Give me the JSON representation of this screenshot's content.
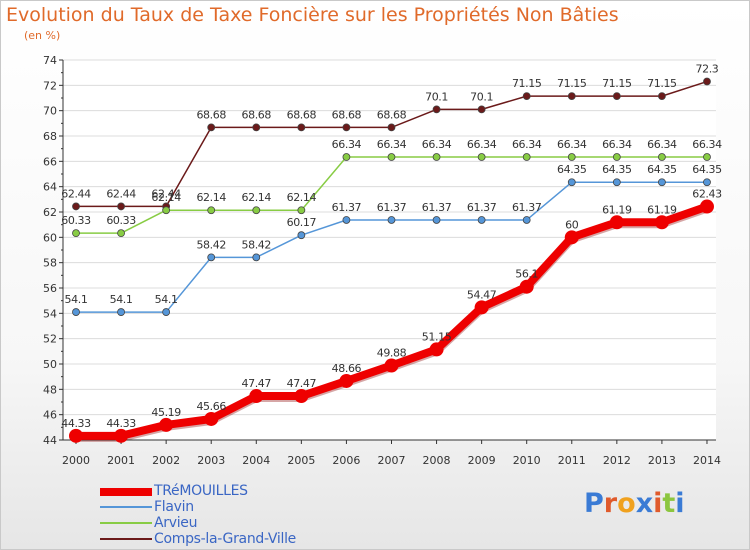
{
  "header": {
    "title": "Evolution du Taux de Taxe Foncière sur les Propriétés Non Bâties",
    "subtitle": "(en %)"
  },
  "logo": {
    "text": "Proxiti",
    "colors": [
      "#3a7bd5",
      "#e05a2b",
      "#f0a11e",
      "#3a7bd5",
      "#e05a2b",
      "#8cc63f",
      "#3a7bd5"
    ]
  },
  "chart_data": {
    "type": "line",
    "title": "Evolution du Taux de Taxe Foncière sur les Propriétés Non Bâties",
    "ylabel": "(en %)",
    "xlabel": "",
    "x": [
      "2000",
      "2001",
      "2002",
      "2003",
      "2004",
      "2005",
      "2006",
      "2007",
      "2008",
      "2009",
      "2010",
      "2011",
      "2012",
      "2013",
      "2014"
    ],
    "ylim": [
      44,
      74
    ],
    "yticks": [
      44,
      46,
      48,
      50,
      52,
      54,
      56,
      58,
      60,
      62,
      64,
      66,
      68,
      70,
      72,
      74
    ],
    "grid": "horizontal",
    "legend_position": "bottom-left",
    "series": [
      {
        "name": "Comps-la-Grand-Ville",
        "color": "#6b1a1a",
        "values": [
          62.44,
          62.44,
          62.44,
          68.68,
          68.68,
          68.68,
          68.68,
          68.68,
          70.1,
          70.1,
          71.15,
          71.15,
          71.15,
          71.15,
          72.3
        ],
        "labels": [
          "62.44",
          "62.44",
          "62.44",
          "68.68",
          "68.68",
          "68.68",
          "68.68",
          "68.68",
          "70.1",
          "70.1",
          "71.15",
          "71.15",
          "71.15",
          "71.15",
          "72.3"
        ]
      },
      {
        "name": "Arvieu",
        "color": "#88cc44",
        "values": [
          60.33,
          60.33,
          62.14,
          62.14,
          62.14,
          62.14,
          66.34,
          66.34,
          66.34,
          66.34,
          66.34,
          66.34,
          66.34,
          66.34,
          66.34
        ],
        "labels": [
          "60.33",
          "60.33",
          "62.14",
          "62.14",
          "62.14",
          "62.14",
          "66.34",
          "66.34",
          "66.34",
          "66.34",
          "66.34",
          "66.34",
          "66.34",
          "66.34",
          "66.34"
        ]
      },
      {
        "name": "Flavin",
        "color": "#5596d8",
        "values": [
          54.1,
          54.1,
          54.1,
          58.42,
          58.42,
          60.17,
          61.37,
          61.37,
          61.37,
          61.37,
          61.37,
          64.35,
          64.35,
          64.35,
          64.35
        ],
        "labels": [
          "54.1",
          "54.1",
          "54.1",
          "58.42",
          "58.42",
          "60.17",
          "61.37",
          "61.37",
          "61.37",
          "61.37",
          "61.37",
          "64.35",
          "64.35",
          "64.35",
          "64.35"
        ]
      },
      {
        "name": "TRéMOUILLES",
        "color": "#ee0000",
        "values": [
          44.33,
          44.33,
          45.19,
          45.66,
          47.47,
          47.47,
          48.66,
          49.88,
          51.15,
          54.47,
          56.1,
          60,
          61.19,
          61.19,
          62.43
        ],
        "labels": [
          "44.33",
          "44.33",
          "45.19",
          "45.66",
          "47.47",
          "47.47",
          "48.66",
          "49.88",
          "51.15",
          "54.47",
          "56.1",
          "60",
          "61.19",
          "61.19",
          "62.43"
        ]
      }
    ],
    "legend": [
      "TRéMOUILLES",
      "Flavin",
      "Arvieu",
      "Comps-la-Grand-Ville"
    ]
  }
}
